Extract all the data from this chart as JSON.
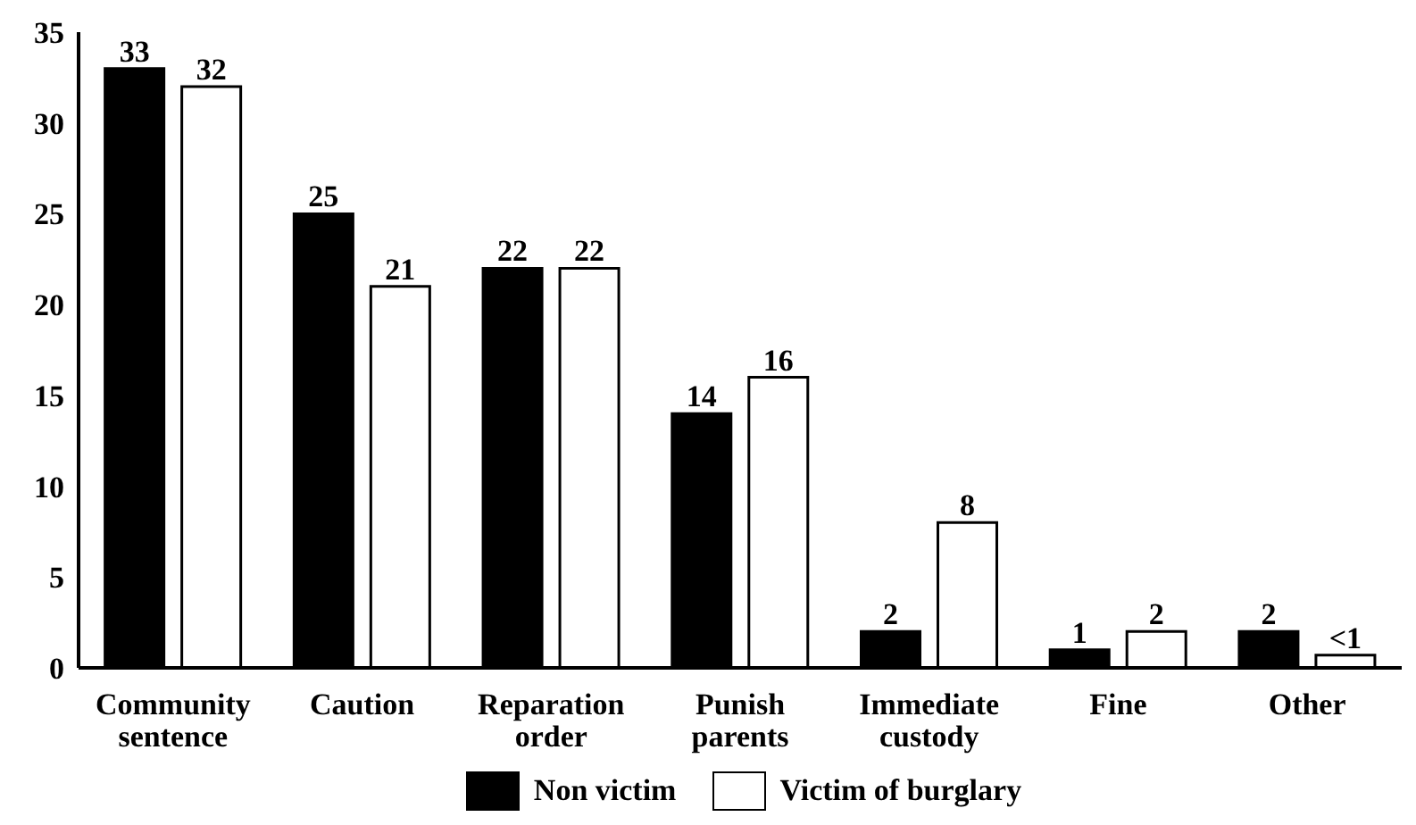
{
  "chart_data": {
    "type": "bar",
    "categories": [
      "Community sentence",
      "Caution",
      "Reparation order",
      "Punish parents",
      "Immediate custody",
      "Fine",
      "Other"
    ],
    "series": [
      {
        "name": "Non victim",
        "color": "#000000",
        "values": [
          33,
          25,
          22,
          14,
          2,
          1,
          2
        ],
        "value_labels": [
          "33",
          "25",
          "22",
          "14",
          "2",
          "1",
          "2"
        ]
      },
      {
        "name": "Victim of burglary",
        "color": "#ffffff",
        "values": [
          32,
          21,
          22,
          16,
          8,
          2,
          0.7
        ],
        "value_labels": [
          "32",
          "21",
          "22",
          "16",
          "8",
          "2",
          "<1"
        ]
      }
    ],
    "ylim": [
      0,
      35
    ],
    "yticks": [
      0,
      5,
      10,
      15,
      20,
      25,
      30,
      35
    ],
    "grid": false,
    "legend": "bottom"
  }
}
